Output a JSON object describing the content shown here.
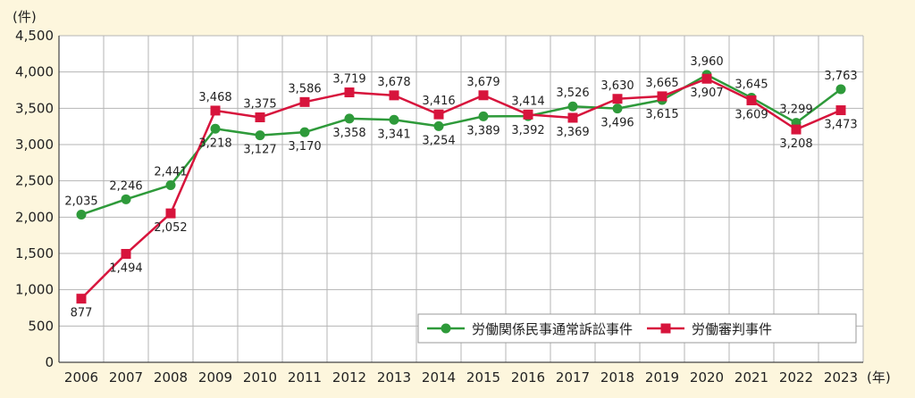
{
  "chart_data": {
    "type": "line",
    "y_unit": "(件)",
    "x_unit": "(年)",
    "categories": [
      "2006",
      "2007",
      "2008",
      "2009",
      "2010",
      "2011",
      "2012",
      "2013",
      "2014",
      "2015",
      "2016",
      "2017",
      "2018",
      "2019",
      "2020",
      "2021",
      "2022",
      "2023"
    ],
    "ylim": [
      0,
      4500
    ],
    "yticks": [
      0,
      500,
      1000,
      1500,
      2000,
      2500,
      3000,
      3500,
      4000,
      4500
    ],
    "ytick_labels": [
      "0",
      "500",
      "1,000",
      "1,500",
      "2,000",
      "2,500",
      "3,000",
      "3,500",
      "4,000",
      "4,500"
    ],
    "grid": true,
    "legend_position": "bottom-right",
    "series": [
      {
        "name": "労働関係民事通常訴訟事件",
        "color": "#2e9a3a",
        "marker": "circle",
        "values": [
          2035,
          2246,
          2441,
          3218,
          3127,
          3170,
          3358,
          3341,
          3254,
          3389,
          3392,
          3526,
          3496,
          3615,
          3960,
          3645,
          3299,
          3763
        ],
        "labels": [
          "2,035",
          "2,246",
          "2,441",
          "3,218",
          "3,127",
          "3,170",
          "3,358",
          "3,341",
          "3,254",
          "3,389",
          "3,392",
          "3,526",
          "3,496",
          "3,615",
          "3,960",
          "3,645",
          "3,299",
          "3,763"
        ]
      },
      {
        "name": "労働審判事件",
        "color": "#d7143c",
        "marker": "square",
        "values": [
          877,
          1494,
          2052,
          3468,
          3375,
          3586,
          3719,
          3678,
          3416,
          3679,
          3414,
          3369,
          3630,
          3665,
          3907,
          3609,
          3208,
          3473
        ],
        "labels": [
          "877",
          "1,494",
          "2,052",
          "3,468",
          "3,375",
          "3,586",
          "3,719",
          "3,678",
          "3,416",
          "3,679",
          "3,414",
          "3,369",
          "3,630",
          "3,665",
          "3,907",
          "3,609",
          "3,208",
          "3,473"
        ]
      }
    ]
  }
}
